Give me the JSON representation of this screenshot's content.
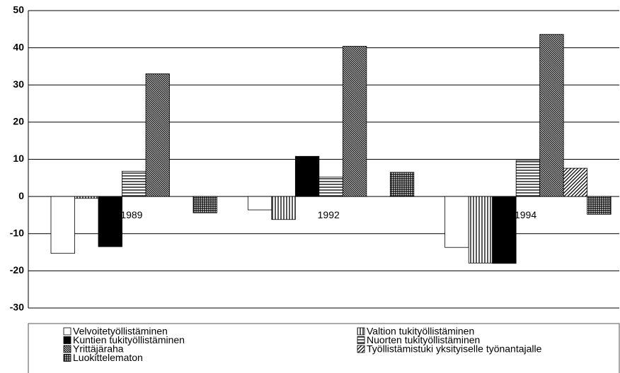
{
  "chart_data": {
    "type": "bar",
    "categories": [
      "1989",
      "1992",
      "1994"
    ],
    "ylim": [
      -30,
      50
    ],
    "yticks": [
      -30,
      -20,
      -10,
      0,
      10,
      20,
      30,
      40,
      50
    ],
    "grid": true,
    "series": [
      {
        "name": "Velvoitetyöllistäminen",
        "color": "#ffffff",
        "pattern": "none",
        "values": [
          -15.3,
          -3.6,
          -13.7
        ]
      },
      {
        "name": "Valtion tukityöllistäminen",
        "color": "#000000",
        "pattern": "vertical",
        "values": [
          -0.5,
          -6.2,
          -17.9
        ]
      },
      {
        "name": "Kuntien tukityöllistäminen",
        "color": "#000000",
        "pattern": "solid",
        "values": [
          -13.5,
          10.8,
          -18.0
        ]
      },
      {
        "name": "Nuorten tukityöllistäminen",
        "color": "#000000",
        "pattern": "horizontal",
        "values": [
          6.8,
          5.2,
          9.7
        ]
      },
      {
        "name": "Yrittäjäraha",
        "color": "#000000",
        "pattern": "dense-diagonal",
        "values": [
          33.0,
          40.4,
          43.6
        ]
      },
      {
        "name": "Työllistämistuki yksityiselle työnantajalle",
        "color": "#000000",
        "pattern": "diagonal",
        "values": [
          0,
          0,
          7.6
        ]
      },
      {
        "name": "Luokittelematon",
        "color": "#000000",
        "pattern": "grid",
        "values": [
          -4.4,
          6.5,
          -4.8
        ]
      }
    ]
  }
}
